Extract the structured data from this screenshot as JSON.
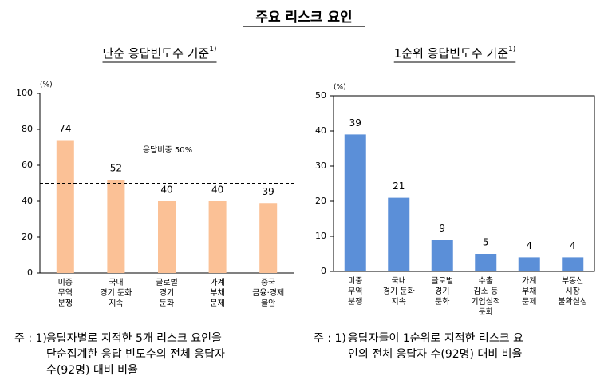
{
  "page_title": "주요 리스크 요인",
  "chart_data": [
    {
      "type": "bar",
      "title": "단순 응답빈도수 기준",
      "title_sup": "1)",
      "unit": "(%)",
      "categories": [
        [
          "미중",
          "무역",
          "분쟁"
        ],
        [
          "국내",
          "경기 둔화",
          "지속"
        ],
        [
          "글로벌",
          "경기",
          "둔화"
        ],
        [
          "가계",
          "부채",
          "문제"
        ],
        [
          "중국",
          "금융·경제",
          "불안"
        ]
      ],
      "values": [
        74,
        52,
        40,
        40,
        39
      ],
      "value_label_colors": [
        "#e0201b",
        "#e0201b",
        "#000000",
        "#000000",
        "#000000"
      ],
      "color": "#fbc196",
      "ylim": [
        0,
        100
      ],
      "yticks": [
        0,
        20,
        40,
        60,
        80,
        100
      ],
      "reference_line": 50,
      "annotation": "응답비중 50%",
      "box": false,
      "note": {
        "prefix": "주 : 1)",
        "lines": [
          "응답자별로 지적한 5개 리스크 요인을",
          "단순집계한 응답 빈도수의 전체 응답자",
          "수(92명) 대비 비율"
        ]
      }
    },
    {
      "type": "bar",
      "title": "1순위 응답빈도수 기준",
      "title_sup": "1)",
      "unit": "(%)",
      "categories": [
        [
          "미중",
          "무역",
          "분쟁"
        ],
        [
          "국내",
          "경기 둔화",
          "지속"
        ],
        [
          "글로벌",
          "경기",
          "둔화"
        ],
        [
          "수출",
          "감소 등",
          "기업실적",
          "둔화"
        ],
        [
          "가계",
          "부채",
          "문제"
        ],
        [
          "부동산",
          "시장",
          "불확실성"
        ]
      ],
      "values": [
        39,
        21,
        9,
        5,
        4,
        4
      ],
      "value_label_colors": [
        "#e0201b",
        "#e0201b",
        "#000000",
        "#000000",
        "#000000",
        "#000000"
      ],
      "color": "#5b8fd8",
      "ylim": [
        0,
        50
      ],
      "yticks": [
        0,
        10,
        20,
        30,
        40,
        50
      ],
      "box": true,
      "note": {
        "prefix": "주 : 1)",
        "lines": [
          "응답자들이 1순위로 지적한 리스크 요",
          "인의 전체 응답자 수(92명) 대비 비율"
        ]
      }
    }
  ]
}
